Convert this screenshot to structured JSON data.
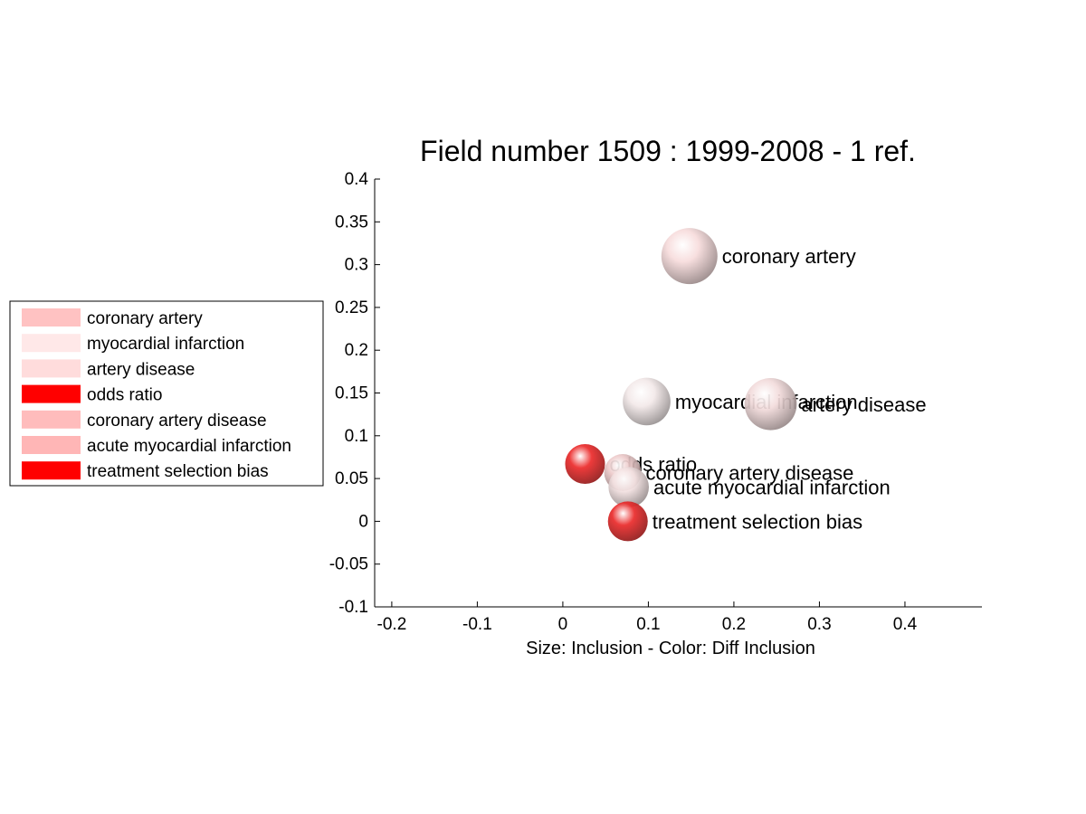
{
  "chart_data": {
    "type": "scatter",
    "title": "Field number 1509 : 1999-2008  - 1 ref.",
    "xlabel": "Size: Inclusion - Color: Diff Inclusion",
    "ylabel": "",
    "xlim": [
      -0.22,
      0.49
    ],
    "ylim": [
      -0.1,
      0.4
    ],
    "xticks": [
      -0.2,
      -0.1,
      0,
      0.1,
      0.2,
      0.3,
      0.4
    ],
    "xtick_labels": [
      "-0.2",
      "-0.1",
      "0",
      "0.1",
      "0.2",
      "0.3",
      "0.4"
    ],
    "yticks": [
      -0.1,
      -0.05,
      0,
      0.05,
      0.1,
      0.15,
      0.2,
      0.25,
      0.3,
      0.35,
      0.4
    ],
    "ytick_labels": [
      "-0.1",
      "-0.05",
      "0",
      "0.05",
      "0.1",
      "0.15",
      "0.2",
      "0.25",
      "0.3",
      "0.35",
      "0.4"
    ],
    "grid": false,
    "legend_position": "left, outside plot",
    "points": [
      {
        "label": "coronary artery",
        "x": 0.148,
        "y": 0.31,
        "size": 1.0,
        "color": "#f7dcdc"
      },
      {
        "label": "myocardial infarction",
        "x": 0.098,
        "y": 0.14,
        "size": 0.85,
        "color": "#f3e9e9"
      },
      {
        "label": "artery disease",
        "x": 0.243,
        "y": 0.137,
        "size": 0.93,
        "color": "#f2dbdb"
      },
      {
        "label": "odds ratio",
        "x": 0.026,
        "y": 0.067,
        "size": 0.71,
        "color": "#ec2a2a"
      },
      {
        "label": "coronary artery disease",
        "x": 0.07,
        "y": 0.057,
        "size": 0.66,
        "color": "#edcaca"
      },
      {
        "label": "acute myocardial infarction",
        "x": 0.077,
        "y": 0.04,
        "size": 0.72,
        "color": "#f4e2e2"
      },
      {
        "label": "treatment selection bias",
        "x": 0.076,
        "y": 0.0,
        "size": 0.71,
        "color": "#ea2a2a"
      }
    ]
  },
  "legend": {
    "items": [
      {
        "label": "coronary artery",
        "color": "#ffc2c2"
      },
      {
        "label": "myocardial infarction",
        "color": "#ffe8e8"
      },
      {
        "label": "artery disease",
        "color": "#ffdcdc"
      },
      {
        "label": "odds ratio",
        "color": "#ff0000"
      },
      {
        "label": "coronary artery disease",
        "color": "#ffbcbc"
      },
      {
        "label": "acute myocardial infarction",
        "color": "#ffb6b6"
      },
      {
        "label": "treatment selection bias",
        "color": "#ff0000"
      }
    ]
  }
}
